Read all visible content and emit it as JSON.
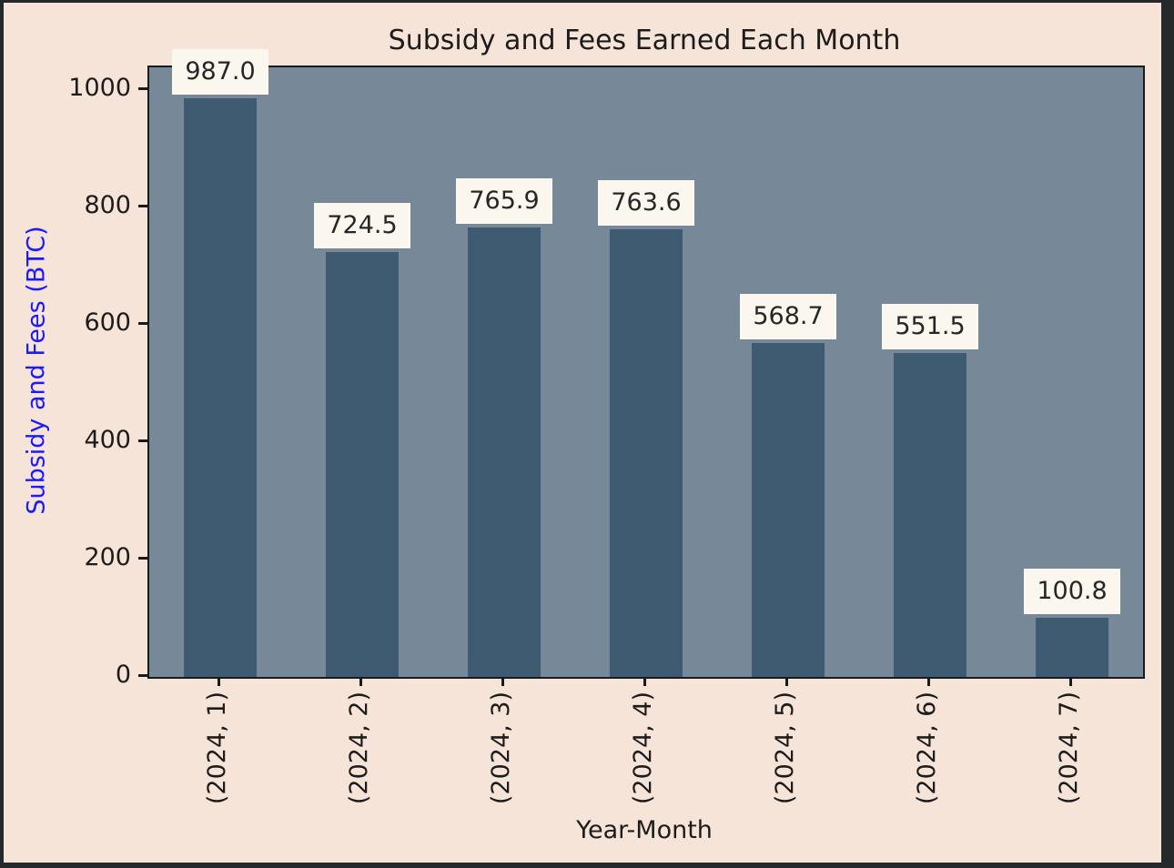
{
  "chart_data": {
    "type": "bar",
    "title": "Subsidy and Fees Earned Each Month",
    "xlabel": "Year-Month",
    "ylabel": "Subsidy and Fees (BTC)",
    "categories": [
      "(2024, 1)",
      "(2024, 2)",
      "(2024, 3)",
      "(2024, 4)",
      "(2024, 5)",
      "(2024, 6)",
      "(2024, 7)"
    ],
    "values": [
      987.0,
      724.5,
      765.9,
      763.6,
      568.7,
      551.5,
      100.8
    ],
    "bar_value_labels": [
      "987.0",
      "724.5",
      "765.9",
      "763.6",
      "568.7",
      "551.5",
      "100.8"
    ],
    "y_ticks": [
      0,
      200,
      400,
      600,
      800,
      1000
    ],
    "ylim": [
      0,
      1039
    ],
    "grid": false,
    "legend": null,
    "colors": {
      "frame": "#26292b",
      "figure_bg": "#f7e4d9",
      "plot_bg": "#778899",
      "bar": "#3f5b71",
      "bar_label_bg": "#fbf6ee",
      "axis_text": "#1c1c1c",
      "ylabel_text": "#1a1aff"
    }
  }
}
